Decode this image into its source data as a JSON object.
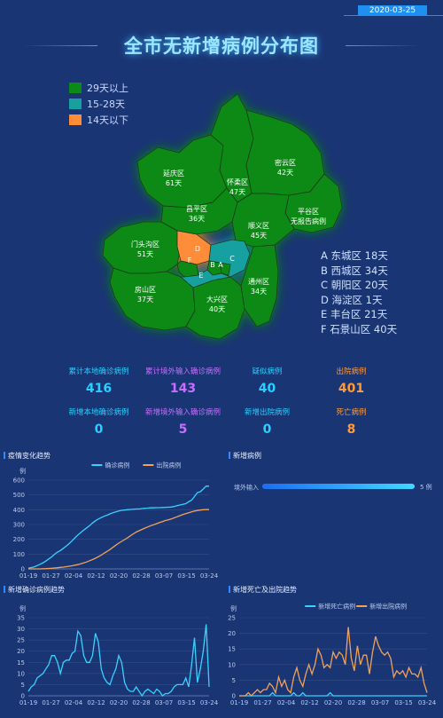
{
  "header": {
    "date": "2020-03-25",
    "title": "全市无新增病例分布图"
  },
  "legend": [
    {
      "label": "29天以上",
      "color": "#0b8a16"
    },
    {
      "label": "15-28天",
      "color": "#18a0a0"
    },
    {
      "label": "14天以下",
      "color": "#ff8c37"
    }
  ],
  "map": {
    "districts": {
      "yanqing": {
        "name": "延庆区",
        "days": "61天"
      },
      "huairou": {
        "name": "怀柔区",
        "days": "47天"
      },
      "miyun": {
        "name": "密云区",
        "days": "42天"
      },
      "pinggu": {
        "name": "平谷区",
        "days": "无报告病例"
      },
      "changping": {
        "name": "昌平区",
        "days": "36天"
      },
      "shunyi": {
        "name": "顺义区",
        "days": "45天"
      },
      "mentougou": {
        "name": "门头沟区",
        "days": "51天"
      },
      "fangshan": {
        "name": "房山区",
        "days": "37天"
      },
      "daxing": {
        "name": "大兴区",
        "days": "40天"
      },
      "tongzhou": {
        "name": "通州区",
        "days": "34天"
      }
    },
    "core_letters": [
      "A",
      "B",
      "C",
      "D",
      "E",
      "F"
    ]
  },
  "key_list": [
    {
      "letter": "A",
      "text": "东城区 18天"
    },
    {
      "letter": "B",
      "text": "西城区 34天"
    },
    {
      "letter": "C",
      "text": "朝阳区 20天"
    },
    {
      "letter": "D",
      "text": "海淀区 1天"
    },
    {
      "letter": "E",
      "text": "丰台区 21天"
    },
    {
      "letter": "F",
      "text": "石景山区 40天"
    }
  ],
  "stats": [
    {
      "label": "累计本地确诊病例",
      "value": "416",
      "color": "#28d0ff"
    },
    {
      "label": "累计境外输入确诊病例",
      "value": "143",
      "color": "#c86dff"
    },
    {
      "label": "疑似病例",
      "value": "40",
      "color": "#28d0ff"
    },
    {
      "label": "出院病例",
      "value": "401",
      "color": "#ff9a3c"
    },
    {
      "label": "新增本地确诊病例",
      "value": "0",
      "color": "#28d0ff"
    },
    {
      "label": "新增境外输入确诊病例",
      "value": "5",
      "color": "#c86dff"
    },
    {
      "label": "新增出院病例",
      "value": "0",
      "color": "#28d0ff"
    },
    {
      "label": "死亡病例",
      "value": "8",
      "color": "#ff9a3c"
    }
  ],
  "panels": {
    "trend": {
      "title": "疫情变化趋势"
    },
    "new_cases": {
      "title": "新增病例"
    },
    "daily_confirmed": {
      "title": "新增确诊病例趋势"
    },
    "death_discharge": {
      "title": "新增死亡及出院趋势"
    }
  },
  "chart_data": [
    {
      "type": "line",
      "title": "疫情变化趋势",
      "ylabel": "例",
      "ylim": [
        0,
        600
      ],
      "yticks": [
        0,
        100,
        200,
        300,
        400,
        500,
        600
      ],
      "xticks": [
        "01-19",
        "01-27",
        "02-04",
        "02-12",
        "02-20",
        "02-28",
        "03-07",
        "03-15",
        "03-24"
      ],
      "series": [
        {
          "name": "确诊病例",
          "color": "#38d2ff",
          "values": [
            5,
            9,
            14,
            22,
            31,
            41,
            53,
            67,
            81,
            99,
            114,
            124,
            139,
            155,
            171,
            190,
            210,
            229,
            246,
            262,
            277,
            292,
            310,
            325,
            337,
            347,
            356,
            363,
            372,
            380,
            386,
            392,
            396,
            398,
            400,
            402,
            403,
            405,
            405,
            408,
            410,
            411,
            413,
            413,
            414,
            414,
            415,
            416,
            417,
            418,
            422,
            427,
            432,
            436,
            441,
            454,
            465,
            489,
            516,
            522,
            540,
            560,
            559
          ]
        },
        {
          "name": "出院病例",
          "color": "#f0a25a",
          "values": [
            0,
            0,
            0,
            0,
            0,
            1,
            2,
            3,
            4,
            6,
            8,
            10,
            12,
            15,
            18,
            21,
            25,
            29,
            35,
            41,
            47,
            55,
            63,
            72,
            82,
            93,
            106,
            118,
            131,
            146,
            160,
            174,
            186,
            198,
            210,
            224,
            237,
            249,
            258,
            267,
            276,
            284,
            292,
            299,
            306,
            313,
            320,
            327,
            332,
            337,
            345,
            352,
            360,
            367,
            374,
            380,
            386,
            391,
            395,
            398,
            400,
            401,
            401
          ]
        }
      ]
    },
    {
      "type": "bar",
      "title": "新增病例",
      "categories": [
        "境外输入"
      ],
      "values": [
        5
      ],
      "data_labels": [
        "5 例"
      ]
    },
    {
      "type": "line",
      "title": "新增确诊病例趋势",
      "ylabel": "例",
      "ylim": [
        0,
        35
      ],
      "yticks": [
        0,
        5,
        10,
        15,
        20,
        25,
        30,
        35
      ],
      "xticks": [
        "01-19",
        "01-27",
        "02-04",
        "02-12",
        "02-20",
        "02-28",
        "03-07",
        "03-15",
        "03-24"
      ],
      "series": [
        {
          "name": "新增确诊病例",
          "color": "#38d2ff",
          "values": [
            2,
            4,
            5,
            8,
            9,
            10,
            12,
            14,
            18,
            18,
            15,
            10,
            15,
            16,
            16,
            19,
            20,
            29,
            27,
            18,
            15,
            15,
            18,
            28,
            24,
            12,
            8,
            6,
            5,
            9,
            12,
            18,
            15,
            6,
            3,
            2,
            2,
            4,
            2,
            0,
            2,
            3,
            2,
            1,
            3,
            2,
            0,
            1,
            1,
            2,
            4,
            5,
            5,
            5,
            8,
            4,
            14,
            26,
            6,
            12,
            20,
            32,
            4
          ]
        }
      ]
    },
    {
      "type": "line",
      "title": "新增死亡及出院趋势",
      "ylabel": "例",
      "ylim": [
        0,
        25
      ],
      "yticks": [
        0,
        5,
        10,
        15,
        20,
        25
      ],
      "xticks": [
        "01-19",
        "01-27",
        "02-04",
        "02-12",
        "02-20",
        "02-28",
        "03-07",
        "03-15",
        "03-24"
      ],
      "series": [
        {
          "name": "新增死亡病例",
          "color": "#38d2ff",
          "values": [
            0,
            0,
            0,
            0,
            0,
            0,
            0,
            0,
            0,
            0,
            0,
            1,
            0,
            0,
            0,
            0,
            0,
            0,
            1,
            0,
            0,
            1,
            0,
            0,
            0,
            0,
            0,
            0,
            0,
            0,
            1,
            0,
            0,
            0,
            0,
            0,
            0,
            0,
            0,
            0,
            0,
            0,
            0,
            0,
            0,
            0,
            0,
            0,
            0,
            0,
            0,
            0,
            0,
            0,
            0,
            0,
            0,
            0,
            0,
            0,
            0,
            0,
            0
          ]
        },
        {
          "name": "新增出院病例",
          "color": "#f0a25a",
          "values": [
            0,
            0,
            0,
            1,
            0,
            1,
            2,
            1,
            2,
            2,
            4,
            3,
            1,
            6,
            3,
            5,
            2,
            1,
            6,
            9,
            5,
            3,
            7,
            10,
            7,
            10,
            15,
            13,
            9,
            10,
            9,
            14,
            12,
            14,
            13,
            10,
            22,
            12,
            8,
            16,
            10,
            13,
            13,
            7,
            14,
            19,
            16,
            14,
            13,
            14,
            12,
            6,
            8,
            7,
            8,
            6,
            9,
            7,
            7,
            6,
            9,
            4,
            1
          ]
        }
      ]
    }
  ]
}
